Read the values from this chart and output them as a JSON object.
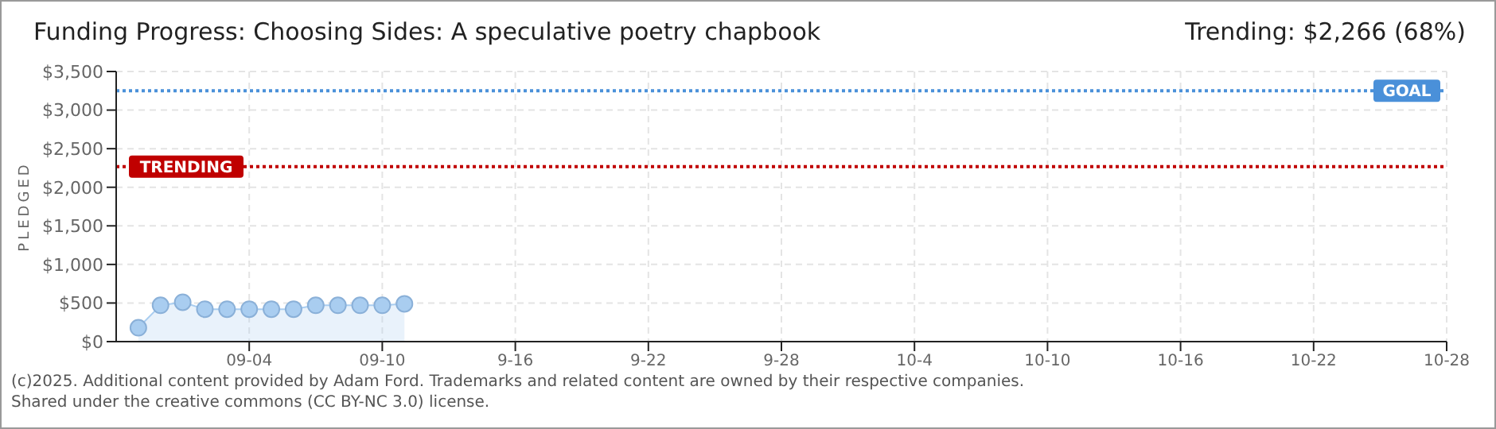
{
  "chart_data": {
    "type": "area",
    "title": "Funding Progress: Choosing Sides: A speculative poetry chapbook",
    "subtitle": "Trending:  $2,266 (68%)",
    "ylabel": "PLEDGED",
    "x": [
      "--08-30",
      "--08-31",
      "--09-01",
      "--09-02",
      "--09-03",
      "--09-04",
      "--09-05",
      "--09-06",
      "--09-07",
      "--09-08",
      "--09-09",
      "--09-10",
      "--09-11"
    ],
    "series": [
      {
        "color": "#a9cdf0",
        "values": [
          180,
          470,
          510,
          420,
          420,
          420,
          420,
          420,
          470,
          470,
          470,
          470,
          490
        ]
      }
    ],
    "xlim": [
      "--08-29",
      "--10-28"
    ],
    "xticks": [
      {
        "value": "--09-04",
        "label": "09-04"
      },
      {
        "value": "--09-10",
        "label": "09-10"
      },
      {
        "value": "--09-16",
        "label": "9-16"
      },
      {
        "value": "--09-22",
        "label": "9-22"
      },
      {
        "value": "--09-28",
        "label": "9-28"
      },
      {
        "value": "--10-04",
        "label": "10-4"
      },
      {
        "value": "--10-10",
        "label": "10-10"
      },
      {
        "value": "--10-16",
        "label": "10-16"
      },
      {
        "value": "--10-22",
        "label": "10-22"
      },
      {
        "value": "--10-28",
        "label": "10-28"
      }
    ],
    "ylim": [
      0,
      3500
    ],
    "yticks": [
      {
        "value": 0,
        "label": "$0"
      },
      {
        "value": 500,
        "label": "$500"
      },
      {
        "value": 1000,
        "label": "$1,000"
      },
      {
        "value": 1500,
        "label": "$1,500"
      },
      {
        "value": 2000,
        "label": "$2,000"
      },
      {
        "value": 2500,
        "label": "$2,500"
      },
      {
        "value": 3000,
        "label": "$3,000"
      },
      {
        "value": 3500,
        "label": "$3,500"
      }
    ],
    "ref_lines": [
      {
        "axis": "y",
        "value": 3250,
        "label": "GOAL",
        "color": "#4a90d9",
        "line_style": "dotted"
      },
      {
        "axis": "y",
        "value": 2266,
        "label": "TRENDING",
        "color": "#c00000",
        "line_style": "dotted"
      }
    ],
    "annotations": [
      "(c)2025. Additional content provided by Adam Ford. Trademarks and related content are owned by their respective companies.",
      "Shared under the creative commons (CC BY-NC 3.0) license."
    ],
    "grid": true,
    "marker": "circle",
    "line_style": "solid"
  }
}
